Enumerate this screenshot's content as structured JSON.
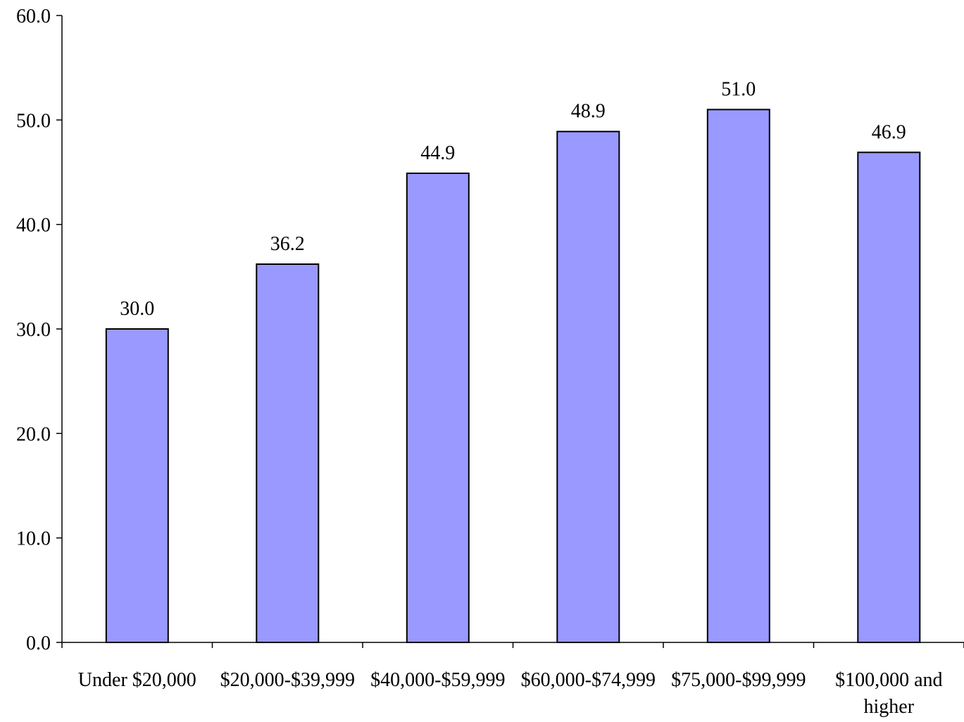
{
  "chart_data": {
    "type": "bar",
    "title": "",
    "xlabel": "",
    "ylabel": "",
    "categories": [
      "Under $20,000",
      "$20,000-$39,999",
      "$40,000-$59,999",
      "$60,000-$74,999",
      "$75,000-$99,999",
      "$100,000 and higher"
    ],
    "category_lines": [
      [
        "Under $20,000"
      ],
      [
        "$20,000-$39,999"
      ],
      [
        "$40,000-$59,999"
      ],
      [
        "$60,000-$74,999"
      ],
      [
        "$75,000-$99,999"
      ],
      [
        "$100,000 and",
        "higher"
      ]
    ],
    "values": [
      30.0,
      36.2,
      44.9,
      48.9,
      51.0,
      46.9
    ],
    "value_labels": [
      "30.0",
      "36.2",
      "44.9",
      "48.9",
      "51.0",
      "46.9"
    ],
    "ylim": [
      0,
      60
    ],
    "yticks": [
      0,
      10,
      20,
      30,
      40,
      50,
      60
    ],
    "ytick_labels": [
      "0.0",
      "10.0",
      "20.0",
      "30.0",
      "40.0",
      "50.0",
      "60.0"
    ],
    "grid": false,
    "legend": "none",
    "colors": {
      "bar_fill": "#9999ff",
      "bar_stroke": "#000000",
      "axis": "#000000"
    }
  }
}
